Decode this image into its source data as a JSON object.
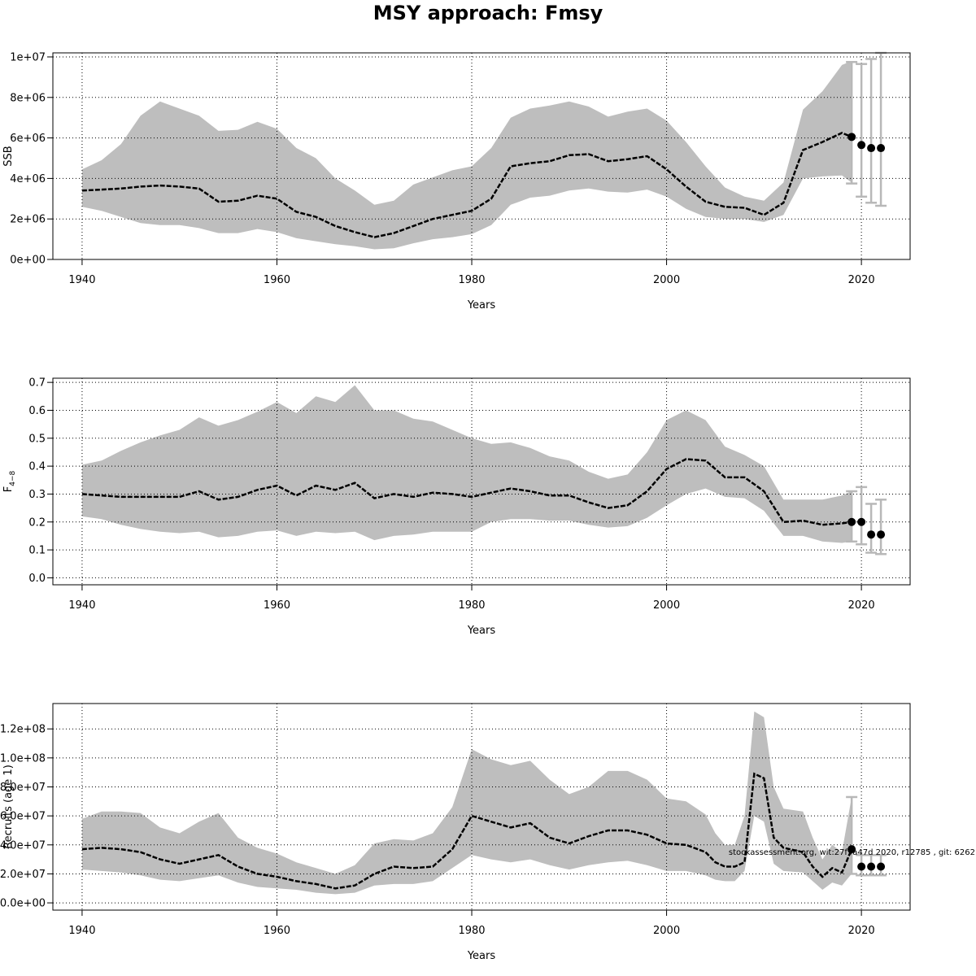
{
  "title": "MSY approach: Fmsy",
  "footnote": "stockassessment.org, wit:27f9a47d   2020, r12785 , git: 6262",
  "colors": {
    "band": "#bebebe",
    "line": "#000000",
    "errorbar": "#b8b8b8",
    "grid": "#000000",
    "background": "#ffffff"
  },
  "chart_data": [
    {
      "type": "line",
      "title": "",
      "xlabel": "Years",
      "ylabel": "SSB",
      "xlim": [
        1937,
        2025
      ],
      "ylim": [
        0,
        10200000
      ],
      "xticks": [
        1940,
        1960,
        1980,
        2000,
        2020
      ],
      "xtick_labels": [
        "1940",
        "1960",
        "1980",
        "2000",
        "2020"
      ],
      "yticks": [
        0,
        2000000,
        4000000,
        6000000,
        8000000,
        10000000
      ],
      "ytick_labels": [
        "0e+00",
        "2e+06",
        "4e+06",
        "6e+06",
        "8e+06",
        "1e+07"
      ],
      "grid": true,
      "x": [
        1940,
        1942,
        1944,
        1946,
        1948,
        1950,
        1952,
        1954,
        1956,
        1958,
        1960,
        1962,
        1964,
        1966,
        1968,
        1970,
        1972,
        1974,
        1976,
        1978,
        1980,
        1982,
        1984,
        1986,
        1988,
        1990,
        1992,
        1994,
        1996,
        1998,
        2000,
        2002,
        2004,
        2006,
        2008,
        2010,
        2012,
        2014,
        2016,
        2018,
        2019
      ],
      "estimate": [
        3400000,
        3450000,
        3500000,
        3600000,
        3650000,
        3600000,
        3500000,
        2850000,
        2900000,
        3150000,
        3000000,
        2350000,
        2100000,
        1650000,
        1350000,
        1100000,
        1300000,
        1650000,
        2000000,
        2200000,
        2400000,
        3000000,
        4600000,
        4750000,
        4850000,
        5150000,
        5200000,
        4850000,
        4950000,
        5100000,
        4450000,
        3600000,
        2850000,
        2600000,
        2550000,
        2200000,
        2800000,
        5400000,
        5800000,
        6250000,
        6050000
      ],
      "lower": [
        2600000,
        2400000,
        2100000,
        1800000,
        1700000,
        1700000,
        1550000,
        1300000,
        1300000,
        1500000,
        1350000,
        1050000,
        900000,
        750000,
        650000,
        500000,
        550000,
        800000,
        1000000,
        1100000,
        1250000,
        1700000,
        2700000,
        3050000,
        3150000,
        3400000,
        3500000,
        3350000,
        3300000,
        3450000,
        3100000,
        2500000,
        2100000,
        2000000,
        2000000,
        1850000,
        2200000,
        4000000,
        4100000,
        4150000,
        3800000
      ],
      "upper": [
        4450000,
        4900000,
        5700000,
        7100000,
        7800000,
        7450000,
        7100000,
        6350000,
        6400000,
        6800000,
        6450000,
        5500000,
        5000000,
        4000000,
        3400000,
        2700000,
        2900000,
        3700000,
        4050000,
        4400000,
        4600000,
        5500000,
        7000000,
        7450000,
        7600000,
        7800000,
        7550000,
        7050000,
        7300000,
        7450000,
        6850000,
        5800000,
        4600000,
        3550000,
        3100000,
        2900000,
        3800000,
        7400000,
        8300000,
        9600000,
        9800000
      ],
      "forecast": [
        {
          "year": 2019,
          "median": 6050000,
          "low": 3750000,
          "high": 9750000
        },
        {
          "year": 2020,
          "median": 5650000,
          "low": 3100000,
          "high": 9650000
        },
        {
          "year": 2021,
          "median": 5500000,
          "low": 2800000,
          "high": 9900000
        },
        {
          "year": 2022,
          "median": 5500000,
          "low": 2650000,
          "high": 10200000
        }
      ]
    },
    {
      "type": "line",
      "title": "",
      "xlabel": "Years",
      "ylabel": "F",
      "ylabel_subscript": "4−8",
      "xlim": [
        1937,
        2025
      ],
      "ylim": [
        -0.025,
        0.715
      ],
      "xticks": [
        1940,
        1960,
        1980,
        2000,
        2020
      ],
      "xtick_labels": [
        "1940",
        "1960",
        "1980",
        "2000",
        "2020"
      ],
      "yticks": [
        0.0,
        0.1,
        0.2,
        0.3,
        0.4,
        0.5,
        0.6,
        0.7
      ],
      "ytick_labels": [
        "0.0",
        "0.1",
        "0.2",
        "0.3",
        "0.4",
        "0.5",
        "0.6",
        "0.7"
      ],
      "grid": true,
      "x": [
        1940,
        1942,
        1944,
        1946,
        1948,
        1950,
        1952,
        1954,
        1956,
        1958,
        1960,
        1962,
        1964,
        1966,
        1968,
        1970,
        1972,
        1974,
        1976,
        1978,
        1980,
        1982,
        1984,
        1986,
        1988,
        1990,
        1992,
        1994,
        1996,
        1998,
        2000,
        2002,
        2004,
        2006,
        2008,
        2010,
        2012,
        2014,
        2016,
        2018,
        2019
      ],
      "estimate": [
        0.3,
        0.295,
        0.29,
        0.29,
        0.29,
        0.29,
        0.31,
        0.28,
        0.29,
        0.315,
        0.33,
        0.295,
        0.33,
        0.315,
        0.34,
        0.285,
        0.3,
        0.29,
        0.305,
        0.3,
        0.29,
        0.305,
        0.32,
        0.31,
        0.295,
        0.295,
        0.27,
        0.25,
        0.26,
        0.31,
        0.39,
        0.425,
        0.42,
        0.36,
        0.36,
        0.31,
        0.2,
        0.205,
        0.19,
        0.195,
        0.2
      ],
      "lower": [
        0.22,
        0.21,
        0.19,
        0.175,
        0.165,
        0.16,
        0.165,
        0.145,
        0.15,
        0.165,
        0.17,
        0.15,
        0.165,
        0.16,
        0.165,
        0.135,
        0.15,
        0.155,
        0.165,
        0.165,
        0.165,
        0.2,
        0.21,
        0.21,
        0.205,
        0.205,
        0.19,
        0.18,
        0.185,
        0.215,
        0.26,
        0.3,
        0.32,
        0.29,
        0.285,
        0.24,
        0.15,
        0.15,
        0.13,
        0.125,
        0.13
      ],
      "upper": [
        0.405,
        0.42,
        0.455,
        0.485,
        0.51,
        0.53,
        0.575,
        0.545,
        0.565,
        0.595,
        0.63,
        0.59,
        0.65,
        0.63,
        0.69,
        0.6,
        0.6,
        0.57,
        0.56,
        0.53,
        0.5,
        0.48,
        0.485,
        0.465,
        0.435,
        0.42,
        0.38,
        0.355,
        0.37,
        0.45,
        0.565,
        0.6,
        0.565,
        0.47,
        0.44,
        0.4,
        0.28,
        0.28,
        0.28,
        0.295,
        0.31
      ],
      "forecast": [
        {
          "year": 2019,
          "median": 0.2,
          "low": 0.13,
          "high": 0.31
        },
        {
          "year": 2020,
          "median": 0.2,
          "low": 0.12,
          "high": 0.325
        },
        {
          "year": 2021,
          "median": 0.155,
          "low": 0.09,
          "high": 0.265
        },
        {
          "year": 2022,
          "median": 0.155,
          "low": 0.085,
          "high": 0.28
        }
      ]
    },
    {
      "type": "line",
      "title": "",
      "xlabel": "Years",
      "ylabel": "Recruits (age 1)",
      "xlim": [
        1937,
        2025
      ],
      "ylim": [
        -5000000,
        137500000
      ],
      "xticks": [
        1940,
        1960,
        1980,
        2000,
        2020
      ],
      "xtick_labels": [
        "1940",
        "1960",
        "1980",
        "2000",
        "2020"
      ],
      "yticks": [
        0,
        20000000,
        40000000,
        60000000,
        80000000,
        100000000,
        120000000
      ],
      "ytick_labels": [
        "0.0e+00",
        "2.0e+07",
        "4.0e+07",
        "6.0e+07",
        "8.0e+07",
        "1.0e+08",
        "1.2e+08"
      ],
      "grid": true,
      "x": [
        1940,
        1942,
        1944,
        1946,
        1948,
        1950,
        1952,
        1954,
        1956,
        1958,
        1960,
        1962,
        1964,
        1966,
        1968,
        1970,
        1972,
        1974,
        1976,
        1978,
        1980,
        1982,
        1984,
        1986,
        1988,
        1990,
        1992,
        1994,
        1996,
        1998,
        2000,
        2002,
        2004,
        2005,
        2006,
        2007,
        2008,
        2009,
        2010,
        2011,
        2012,
        2014,
        2015,
        2016,
        2017,
        2018,
        2019
      ],
      "estimate": [
        37000000,
        38000000,
        37000000,
        35000000,
        30000000,
        27000000,
        30000000,
        33000000,
        25000000,
        20000000,
        18000000,
        15000000,
        13000000,
        10000000,
        12000000,
        20000000,
        25000000,
        24000000,
        25000000,
        37000000,
        60000000,
        56000000,
        52000000,
        55000000,
        45000000,
        41000000,
        46000000,
        50000000,
        50000000,
        47000000,
        41000000,
        40000000,
        35000000,
        28000000,
        25000000,
        25000000,
        28000000,
        89000000,
        86000000,
        45000000,
        38000000,
        35000000,
        25000000,
        18000000,
        24000000,
        21000000,
        37000000
      ],
      "lower": [
        23000000,
        22000000,
        21000000,
        19000000,
        16000000,
        15000000,
        17000000,
        19000000,
        14000000,
        11000000,
        10000000,
        9000000,
        7000000,
        6000000,
        7000000,
        12000000,
        13000000,
        13000000,
        15000000,
        24000000,
        33000000,
        30000000,
        28000000,
        30000000,
        26000000,
        23000000,
        26000000,
        28000000,
        29000000,
        26000000,
        22000000,
        22000000,
        19000000,
        16000000,
        15000000,
        15000000,
        22000000,
        60000000,
        56000000,
        27000000,
        22000000,
        21000000,
        15000000,
        9000000,
        14000000,
        12000000,
        20000000
      ],
      "upper": [
        58000000,
        63000000,
        63000000,
        62000000,
        52000000,
        48000000,
        56000000,
        62000000,
        45000000,
        38000000,
        34000000,
        28000000,
        24000000,
        20000000,
        26000000,
        41000000,
        44000000,
        43000000,
        48000000,
        66000000,
        106000000,
        99000000,
        95000000,
        98000000,
        85000000,
        75000000,
        80000000,
        91000000,
        91000000,
        85000000,
        72000000,
        70000000,
        61000000,
        48000000,
        40000000,
        40000000,
        60000000,
        132000000,
        128000000,
        80000000,
        65000000,
        63000000,
        45000000,
        30000000,
        40000000,
        35000000,
        73000000
      ],
      "forecast": [
        {
          "year": 2019,
          "median": 37000000,
          "low": 20000000,
          "high": 73000000
        },
        {
          "year": 2020,
          "median": 25000000,
          "low": 19000000,
          "high": 33000000
        },
        {
          "year": 2021,
          "median": 25000000,
          "low": 19000000,
          "high": 33000000
        },
        {
          "year": 2022,
          "median": 25000000,
          "low": 19000000,
          "high": 33000000
        }
      ]
    }
  ]
}
